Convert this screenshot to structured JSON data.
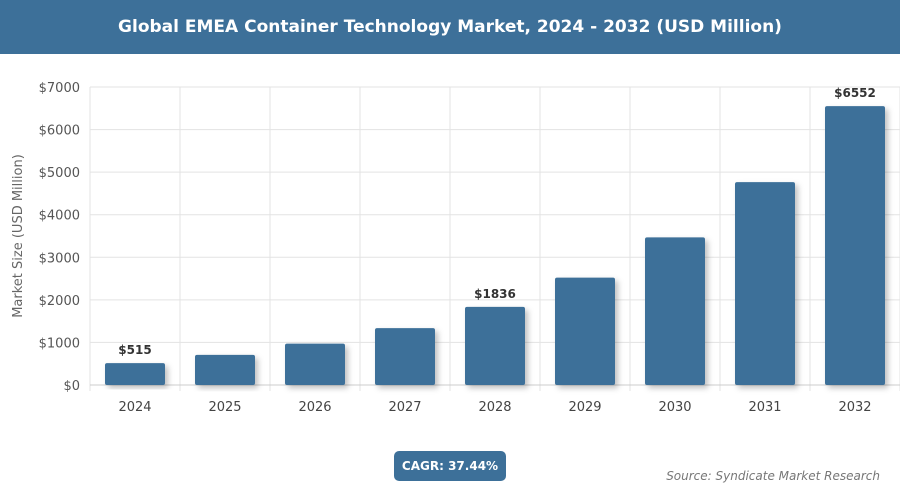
{
  "header": {
    "title": "Global EMEA Container Technology Market, 2024 - 2032 (USD Million)"
  },
  "chart_data": {
    "type": "bar",
    "title": "Global EMEA Container Technology Market, 2024 - 2032 (USD Million)",
    "xlabel": "",
    "ylabel": "Market Size (USD Million)",
    "categories": [
      "2024",
      "2025",
      "2026",
      "2027",
      "2028",
      "2029",
      "2030",
      "2031",
      "2032"
    ],
    "values": [
      515,
      708,
      973,
      1337,
      1836,
      2523,
      3467,
      4765,
      6552
    ],
    "data_labels": {
      "2024": "$515",
      "2028": "$1836",
      "2032": "$6552"
    },
    "ylim": [
      0,
      7000
    ],
    "yticks": [
      "$0",
      "$1000",
      "$2000",
      "$3000",
      "$4000",
      "$5000",
      "$6000",
      "$7000"
    ],
    "grid": true,
    "bar_color": "#3d7099"
  },
  "footer": {
    "cagr": "CAGR: 37.44%",
    "source": "Source: Syndicate Market Research"
  }
}
